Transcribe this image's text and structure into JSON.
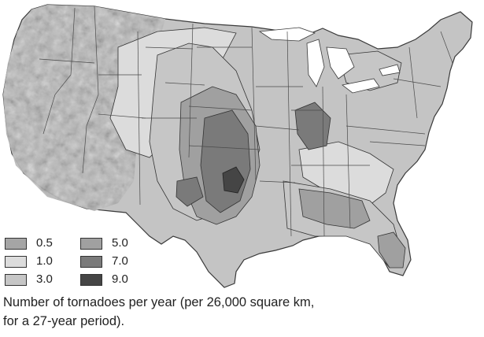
{
  "map": {
    "region": "contiguous-united-states",
    "style": "grayscale shaded-relief with state boundaries",
    "land_color": "#c4c4c4",
    "relief_color": "#a8a8a8",
    "lake_color": "#ffffff",
    "boundary_color": "#3a3a3a"
  },
  "legend": {
    "items": [
      {
        "label": "0.5",
        "color": "#a5a5a5"
      },
      {
        "label": "1.0",
        "color": "#dcdcdc"
      },
      {
        "label": "3.0",
        "color": "#c6c6c6"
      },
      {
        "label": "5.0",
        "color": "#a0a0a0"
      },
      {
        "label": "7.0",
        "color": "#7a7a7a"
      },
      {
        "label": "9.0",
        "color": "#454545"
      }
    ]
  },
  "caption": {
    "line1": "Number of tornadoes per year (per 26,000 square km,",
    "line2": "for a 27-year period)."
  }
}
